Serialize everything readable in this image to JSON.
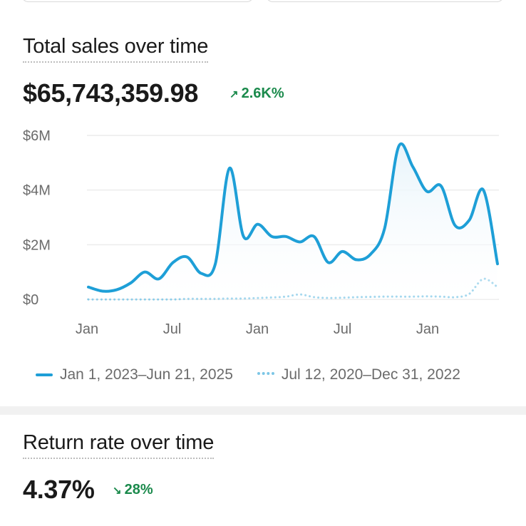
{
  "colors": {
    "primary_line": "#1e9fd7",
    "comparison_line": "#7cc6e6",
    "area_fill": "#e8f4fb",
    "positive": "#1b8a4c",
    "grid": "#ececec"
  },
  "sales_card": {
    "title": "Total sales over time",
    "value": "$65,743,359.98",
    "delta": "2.6K%",
    "delta_icon": "arrow-up-right-icon"
  },
  "return_card": {
    "title": "Return rate over time",
    "value": "4.37%",
    "delta": "28%",
    "delta_icon": "arrow-down-right-icon"
  },
  "chart_data": {
    "type": "line",
    "y_ticks": [
      "$0",
      "$2M",
      "$4M",
      "$6M"
    ],
    "x_ticks": [
      "Jan",
      "Jul",
      "Jan",
      "Jul",
      "Jan"
    ],
    "ylim": [
      0,
      6
    ],
    "y_unit": "$M",
    "grid": true,
    "legend_position": "bottom",
    "series": [
      {
        "name": "Jan 1, 2023–Jun 21, 2025",
        "style": "solid",
        "values": [
          0.45,
          0.3,
          0.35,
          0.6,
          1.0,
          0.75,
          1.35,
          1.55,
          0.95,
          1.3,
          4.8,
          2.3,
          2.75,
          2.3,
          2.3,
          2.1,
          2.3,
          1.35,
          1.75,
          1.45,
          1.65,
          2.6,
          5.6,
          4.85,
          3.95,
          4.15,
          2.7,
          2.9,
          4.0,
          1.3
        ]
      },
      {
        "name": "Jul 12, 2020–Dec 31, 2022",
        "style": "dotted",
        "values": [
          0.0,
          0.0,
          0.0,
          0.0,
          0.0,
          0.0,
          0.0,
          0.02,
          0.02,
          0.02,
          0.03,
          0.03,
          0.05,
          0.07,
          0.1,
          0.18,
          0.08,
          0.05,
          0.06,
          0.08,
          0.09,
          0.1,
          0.1,
          0.1,
          0.11,
          0.1,
          0.08,
          0.2,
          0.75,
          0.45
        ]
      }
    ]
  }
}
